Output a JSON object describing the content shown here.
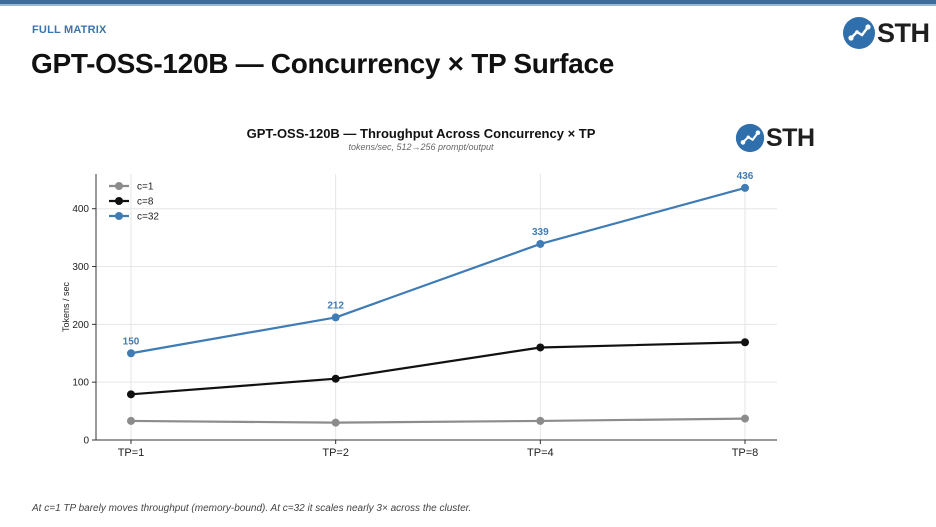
{
  "slide": {
    "eyebrow": "FULL MATRIX",
    "title": "GPT-OSS-120B — Concurrency × TP Surface",
    "caption": "At c=1 TP barely moves throughput (memory-bound). At c=32 it scales nearly 3× across the cluster.",
    "logo_text": "STH"
  },
  "colors": {
    "accent": "#3a73ad",
    "series_c1": "#8c8c8c",
    "series_c8": "#111111",
    "series_c32": "#3f7cb5"
  },
  "chart_data": {
    "type": "line",
    "title": "GPT-OSS-120B — Throughput Across Concurrency × TP",
    "subtitle": "tokens/sec, 512→256 prompt/output",
    "xlabel": "",
    "ylabel": "Tokens / sec",
    "categories": [
      "TP=1",
      "TP=2",
      "TP=4",
      "TP=8"
    ],
    "ylim": [
      0,
      460
    ],
    "yticks": [
      0,
      100,
      200,
      300,
      400
    ],
    "grid": true,
    "legend": "top-left",
    "series": [
      {
        "name": "c=1",
        "color": "#8c8c8c",
        "values": [
          33,
          30,
          33,
          37
        ],
        "labels": false
      },
      {
        "name": "c=8",
        "color": "#111111",
        "values": [
          79,
          106,
          160,
          169
        ],
        "labels": false
      },
      {
        "name": "c=32",
        "color": "#3f7cb5",
        "values": [
          150,
          212,
          339,
          436
        ],
        "labels": true
      }
    ]
  }
}
